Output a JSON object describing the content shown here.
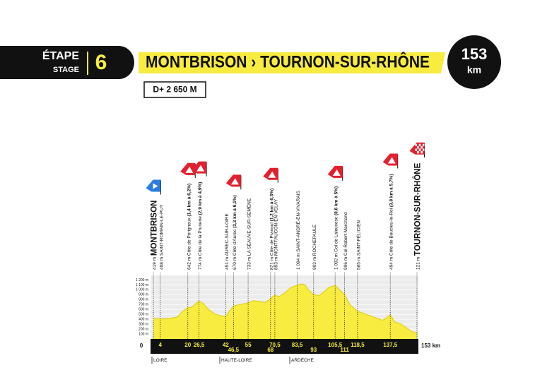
{
  "header": {
    "stage_label": "ÉTAPE",
    "stage_sublabel": "STAGE",
    "stage_number": "6",
    "route": "MONTBRISON › TOURNON-SUR-RHÔNE",
    "distance": "153",
    "distance_unit": "km",
    "elevation_gain": "D+ 2 650 M"
  },
  "chart_data": {
    "type": "area",
    "x": [
      0,
      4,
      10,
      14,
      17,
      20,
      22,
      24,
      26.5,
      29,
      32,
      36,
      40,
      42,
      44,
      46.5,
      50,
      55,
      58,
      62,
      65,
      68,
      70.5,
      73,
      76,
      80,
      83.5,
      86,
      88,
      90,
      93,
      96,
      99,
      102,
      105.5,
      108,
      111,
      114,
      118.5,
      122,
      126,
      130,
      133,
      135,
      137.5,
      140,
      144,
      148,
      150,
      153
    ],
    "values": [
      419,
      408,
      420,
      450,
      560,
      642,
      640,
      700,
      774,
      720,
      600,
      500,
      470,
      451,
      560,
      670,
      700,
      733,
      780,
      760,
      740,
      821,
      893,
      860,
      930,
      1050,
      1094,
      1120,
      1100,
      1000,
      903,
      880,
      960,
      1050,
      1092,
      1000,
      906,
      700,
      565,
      520,
      470,
      420,
      380,
      420,
      494,
      350,
      300,
      200,
      150,
      121
    ],
    "color": "#f7ec3f",
    "xlim": [
      0,
      153
    ],
    "ylim": [
      0,
      1250
    ],
    "yticks": [
      {
        "value": 100,
        "label": "100 m"
      },
      {
        "value": 200,
        "label": "200 m"
      },
      {
        "value": 300,
        "label": "300 m"
      },
      {
        "value": 400,
        "label": "400 m"
      },
      {
        "value": 500,
        "label": "500 m"
      },
      {
        "value": 600,
        "label": "600 m"
      },
      {
        "value": 700,
        "label": "700 m"
      },
      {
        "value": 800,
        "label": "800 m"
      },
      {
        "value": 900,
        "label": "900 m"
      },
      {
        "value": 1000,
        "label": "1 000 m"
      },
      {
        "value": 1100,
        "label": "1 100 m"
      },
      {
        "value": 1200,
        "label": "1 200 m"
      }
    ],
    "xticks": [
      0,
      4,
      20,
      {
        "value": 26.5,
        "label": "26,5"
      },
      42,
      {
        "value": 46.5,
        "label": "46,5"
      },
      55,
      68,
      {
        "value": 70.5,
        "label": "70,5"
      },
      {
        "value": 83.5,
        "label": "83,5"
      },
      93,
      {
        "value": 105.5,
        "label": "105,5"
      },
      111,
      {
        "value": 118.5,
        "label": "118,5"
      },
      {
        "value": 137.5,
        "label": "137,5"
      },
      {
        "value": 153,
        "label": "153 km"
      }
    ],
    "grid": true,
    "waypoints": [
      {
        "elevation": "419 m",
        "name": "MONTBRISON",
        "kind": "start"
      },
      {
        "elevation": "408 m",
        "name": "SAINT-ROMAIN-LE-PUY",
        "kind": "town"
      },
      {
        "elevation": "642 m",
        "name": "Côte de Périgneux",
        "detail": "(1,4 km à 6,2%)",
        "kind": "climb"
      },
      {
        "elevation": "774 m",
        "name": "Côte de la Prunerie",
        "detail": "(2,9 km à 4,9%)",
        "kind": "climb"
      },
      {
        "elevation": "451 m",
        "name": "AUREC-SUR-LOIRE",
        "kind": "town"
      },
      {
        "elevation": "670 m",
        "name": "Côte d'Aurec",
        "detail": "(3,3 km à 6,1%)",
        "kind": "climb"
      },
      {
        "elevation": "733 m",
        "name": "LA SÉAUVE-SUR-SEMÈNE",
        "kind": "town"
      },
      {
        "elevation": "821 m",
        "name": "Côte de Pranoul",
        "detail": "(1,2 km à 6,5%)",
        "kind": "climb"
      },
      {
        "elevation": "893 m",
        "name": "MONTFAUCON-EN-VELAY",
        "kind": "town"
      },
      {
        "elevation": "1 094 m",
        "name": "SAINT-ANDRÉ-EN-VIVARAIS",
        "kind": "town"
      },
      {
        "elevation": "903 m",
        "name": "ROCHEPAULE",
        "kind": "town"
      },
      {
        "elevation": "1 092 m",
        "name": "Col de Lalouvesc",
        "detail": "(8,6 km à 5%)",
        "kind": "climb"
      },
      {
        "elevation": "906 m",
        "name": "Col Robert Marchand",
        "kind": "pass"
      },
      {
        "elevation": "565 m",
        "name": "SAINT-FÉLICIEN",
        "kind": "town"
      },
      {
        "elevation": "494 m",
        "name": "Côte de Boucieu-le-Roi",
        "detail": "(3,8 km à 5,7%)",
        "kind": "climb"
      },
      {
        "elevation": "121 m",
        "name": "TOURNON-SUR-RHÔNE",
        "kind": "finish"
      }
    ],
    "regions": [
      "LOIRE",
      "HAUTE-LOIRE",
      "ARDÈCHE"
    ]
  }
}
